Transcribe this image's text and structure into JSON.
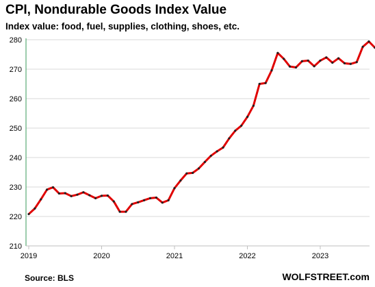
{
  "title": "CPI, Nondurable Goods Index Value",
  "subtitle": "Index value: food, fuel, supplies, clothing, shoes, etc.",
  "source": "Source: BLS",
  "brand": "WOLFSTREET.com",
  "colors": {
    "line": "#e00000",
    "marker": "#222222",
    "grid": "#d9d9d9",
    "axis": "#3a9a5a"
  },
  "chart_data": {
    "type": "line",
    "title": "CPI, Nondurable Goods Index Value",
    "subtitle": "Index value: food, fuel, supplies, clothing, shoes, etc.",
    "xlabel": "",
    "ylabel": "",
    "ylim": [
      210,
      280
    ],
    "yticks": [
      210,
      220,
      230,
      240,
      250,
      260,
      270,
      280
    ],
    "xticks": [
      "2019",
      "2020",
      "2021",
      "2022",
      "2023"
    ],
    "x_start": "2019-01",
    "grid": true,
    "legend": "none",
    "series": [
      {
        "values": [
          220.8,
          222.7,
          225.8,
          229.1,
          229.9,
          227.8,
          227.9,
          226.9,
          227.4,
          228.2,
          227.2,
          226.2,
          227.0,
          227.1,
          225.1,
          221.6,
          221.6,
          224.2,
          224.8,
          225.5,
          226.2,
          226.4,
          224.7,
          225.5,
          229.6,
          232.2,
          234.6,
          234.8,
          236.3,
          238.5,
          240.6,
          242.1,
          243.4,
          246.5,
          249.1,
          250.8,
          253.8,
          257.6,
          265.0,
          265.3,
          269.6,
          275.5,
          273.5,
          270.9,
          270.6,
          272.7,
          272.9,
          271.0,
          272.9,
          274.0,
          272.2,
          273.7,
          272.0,
          271.8,
          272.4,
          277.6,
          279.4,
          277.3
        ]
      }
    ]
  }
}
